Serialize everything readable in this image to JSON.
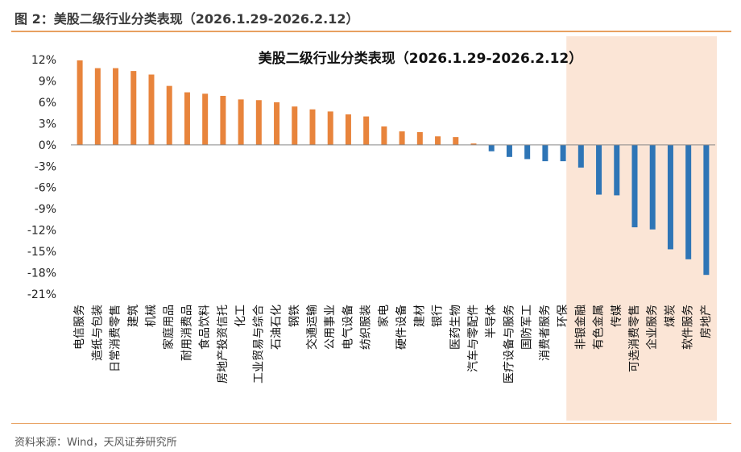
{
  "figure_caption": "图 2：美股二级行业分类表现（2026.1.29-2026.2.12）",
  "source": "资料来源：Wind，天风证券研究所",
  "colors": {
    "positive": "#e8843c",
    "negative": "#2e75b6",
    "highlight": "#fbe5d6",
    "rule": "#e8a060"
  },
  "chart_data": {
    "type": "bar",
    "title": "美股二级行业分类表现（2026.1.29-2026.2.12）",
    "xlabel": "",
    "ylabel": "",
    "ylim": [
      -21,
      12
    ],
    "yticks": [
      12,
      9,
      6,
      3,
      0,
      -3,
      -6,
      -9,
      -12,
      -15,
      -18,
      -21
    ],
    "ytick_labels": [
      "12%",
      "9%",
      "6%",
      "3%",
      "0%",
      "-3%",
      "-6%",
      "-9%",
      "-12%",
      "-15%",
      "-18%",
      "-21%"
    ],
    "grid": false,
    "highlight_from_index": 28,
    "categories": [
      "电信服务",
      "造纸与包装",
      "日常消费零售",
      "建筑",
      "机械",
      "家庭用品",
      "耐用消费品",
      "食品饮料",
      "房地产投资信托",
      "化工",
      "工业贸易与综合",
      "石油石化",
      "钢铁",
      "交通运输",
      "公用事业",
      "电气设备",
      "纺织服装",
      "家电",
      "硬件设备",
      "建材",
      "银行",
      "医药生物",
      "汽车与零配件",
      "半导体",
      "医疗设备与服务",
      "国防军工",
      "消费者服务",
      "环保",
      "非银金融",
      "有色金属",
      "传媒",
      "可选消费零售",
      "企业服务",
      "煤炭",
      "软件服务",
      "房地产"
    ],
    "values": [
      11.9,
      10.8,
      10.8,
      10.4,
      9.9,
      8.3,
      7.4,
      7.2,
      6.9,
      6.4,
      6.3,
      6.0,
      5.4,
      5.0,
      4.7,
      4.3,
      4.0,
      2.6,
      1.9,
      1.8,
      1.2,
      1.1,
      0.2,
      -0.9,
      -1.7,
      -2.0,
      -2.3,
      -2.3,
      -3.2,
      -7.0,
      -7.1,
      -11.6,
      -11.9,
      -14.7,
      -16.1,
      -18.3
    ]
  }
}
